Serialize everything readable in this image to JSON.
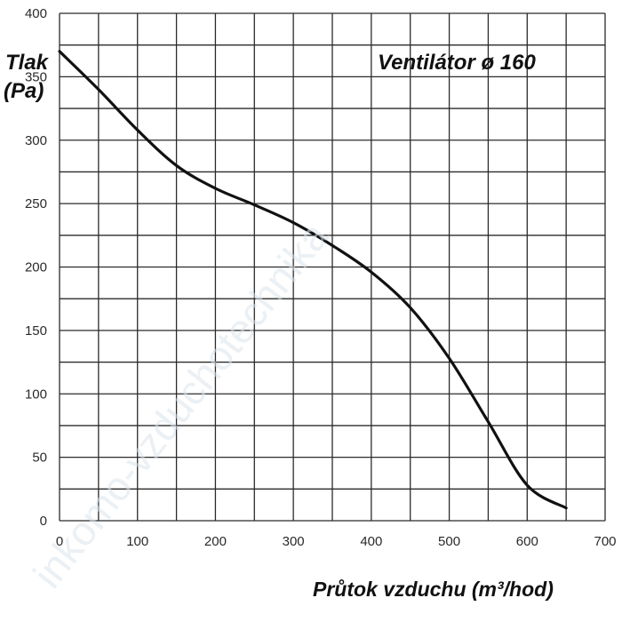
{
  "chart_data": {
    "type": "line",
    "title": "Ventilátor ø 160",
    "xlabel": "Průtok vzduchu (m³/hod)",
    "ylabel_line1": "Tlak",
    "ylabel_line2": "(Pa)",
    "xlim": [
      0,
      700
    ],
    "ylim": [
      0,
      400
    ],
    "x_ticks": [
      0,
      100,
      200,
      300,
      400,
      500,
      600,
      700
    ],
    "y_ticks": [
      0,
      50,
      100,
      150,
      200,
      250,
      300,
      350,
      400
    ],
    "x_minor_step": 50,
    "y_minor_step": 25,
    "grid": true,
    "series": [
      {
        "x": [
          0,
          50,
          100,
          150,
          200,
          250,
          300,
          350,
          400,
          450,
          500,
          550,
          600,
          650
        ],
        "y": [
          370,
          340,
          308,
          280,
          262,
          249,
          235,
          217,
          196,
          168,
          128,
          78,
          28,
          10
        ]
      }
    ],
    "line_color": "#111111",
    "grid_color": "#2b2b2b"
  },
  "watermark": "inkomo-vzduchotechnika"
}
